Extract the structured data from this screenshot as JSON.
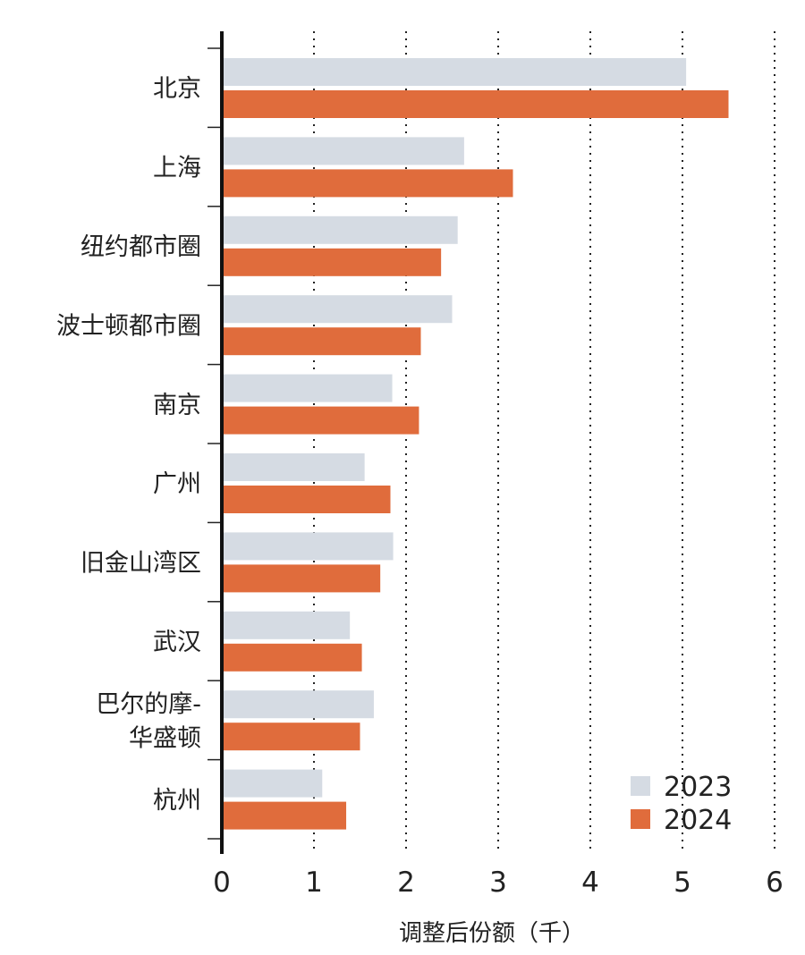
{
  "chart_data": {
    "type": "bar",
    "orientation": "horizontal",
    "title": "",
    "xlabel": "调整后份额（千）",
    "ylabel": "",
    "xlim": [
      0,
      6
    ],
    "xticks": [
      "0",
      "1",
      "2",
      "3",
      "4",
      "5",
      "6"
    ],
    "grid": "vertical dotted",
    "legend_position": "bottom-right",
    "categories": [
      [
        "北京"
      ],
      [
        "上海"
      ],
      [
        "纽约都市圈"
      ],
      [
        "波士顿都市圈"
      ],
      [
        "南京"
      ],
      [
        "广州"
      ],
      [
        "旧金山湾区"
      ],
      [
        "武汉"
      ],
      [
        "巴尔的摩-",
        "华盛顿"
      ],
      [
        "杭州"
      ]
    ],
    "series": [
      {
        "name": "2023",
        "color": "#d5dbe3",
        "values": [
          5.04,
          2.63,
          2.56,
          2.5,
          1.85,
          1.55,
          1.86,
          1.39,
          1.65,
          1.09
        ]
      },
      {
        "name": "2024",
        "color": "#e06c3c",
        "values": [
          5.5,
          3.16,
          2.38,
          2.16,
          2.14,
          1.83,
          1.72,
          1.52,
          1.5,
          1.35
        ]
      }
    ]
  }
}
